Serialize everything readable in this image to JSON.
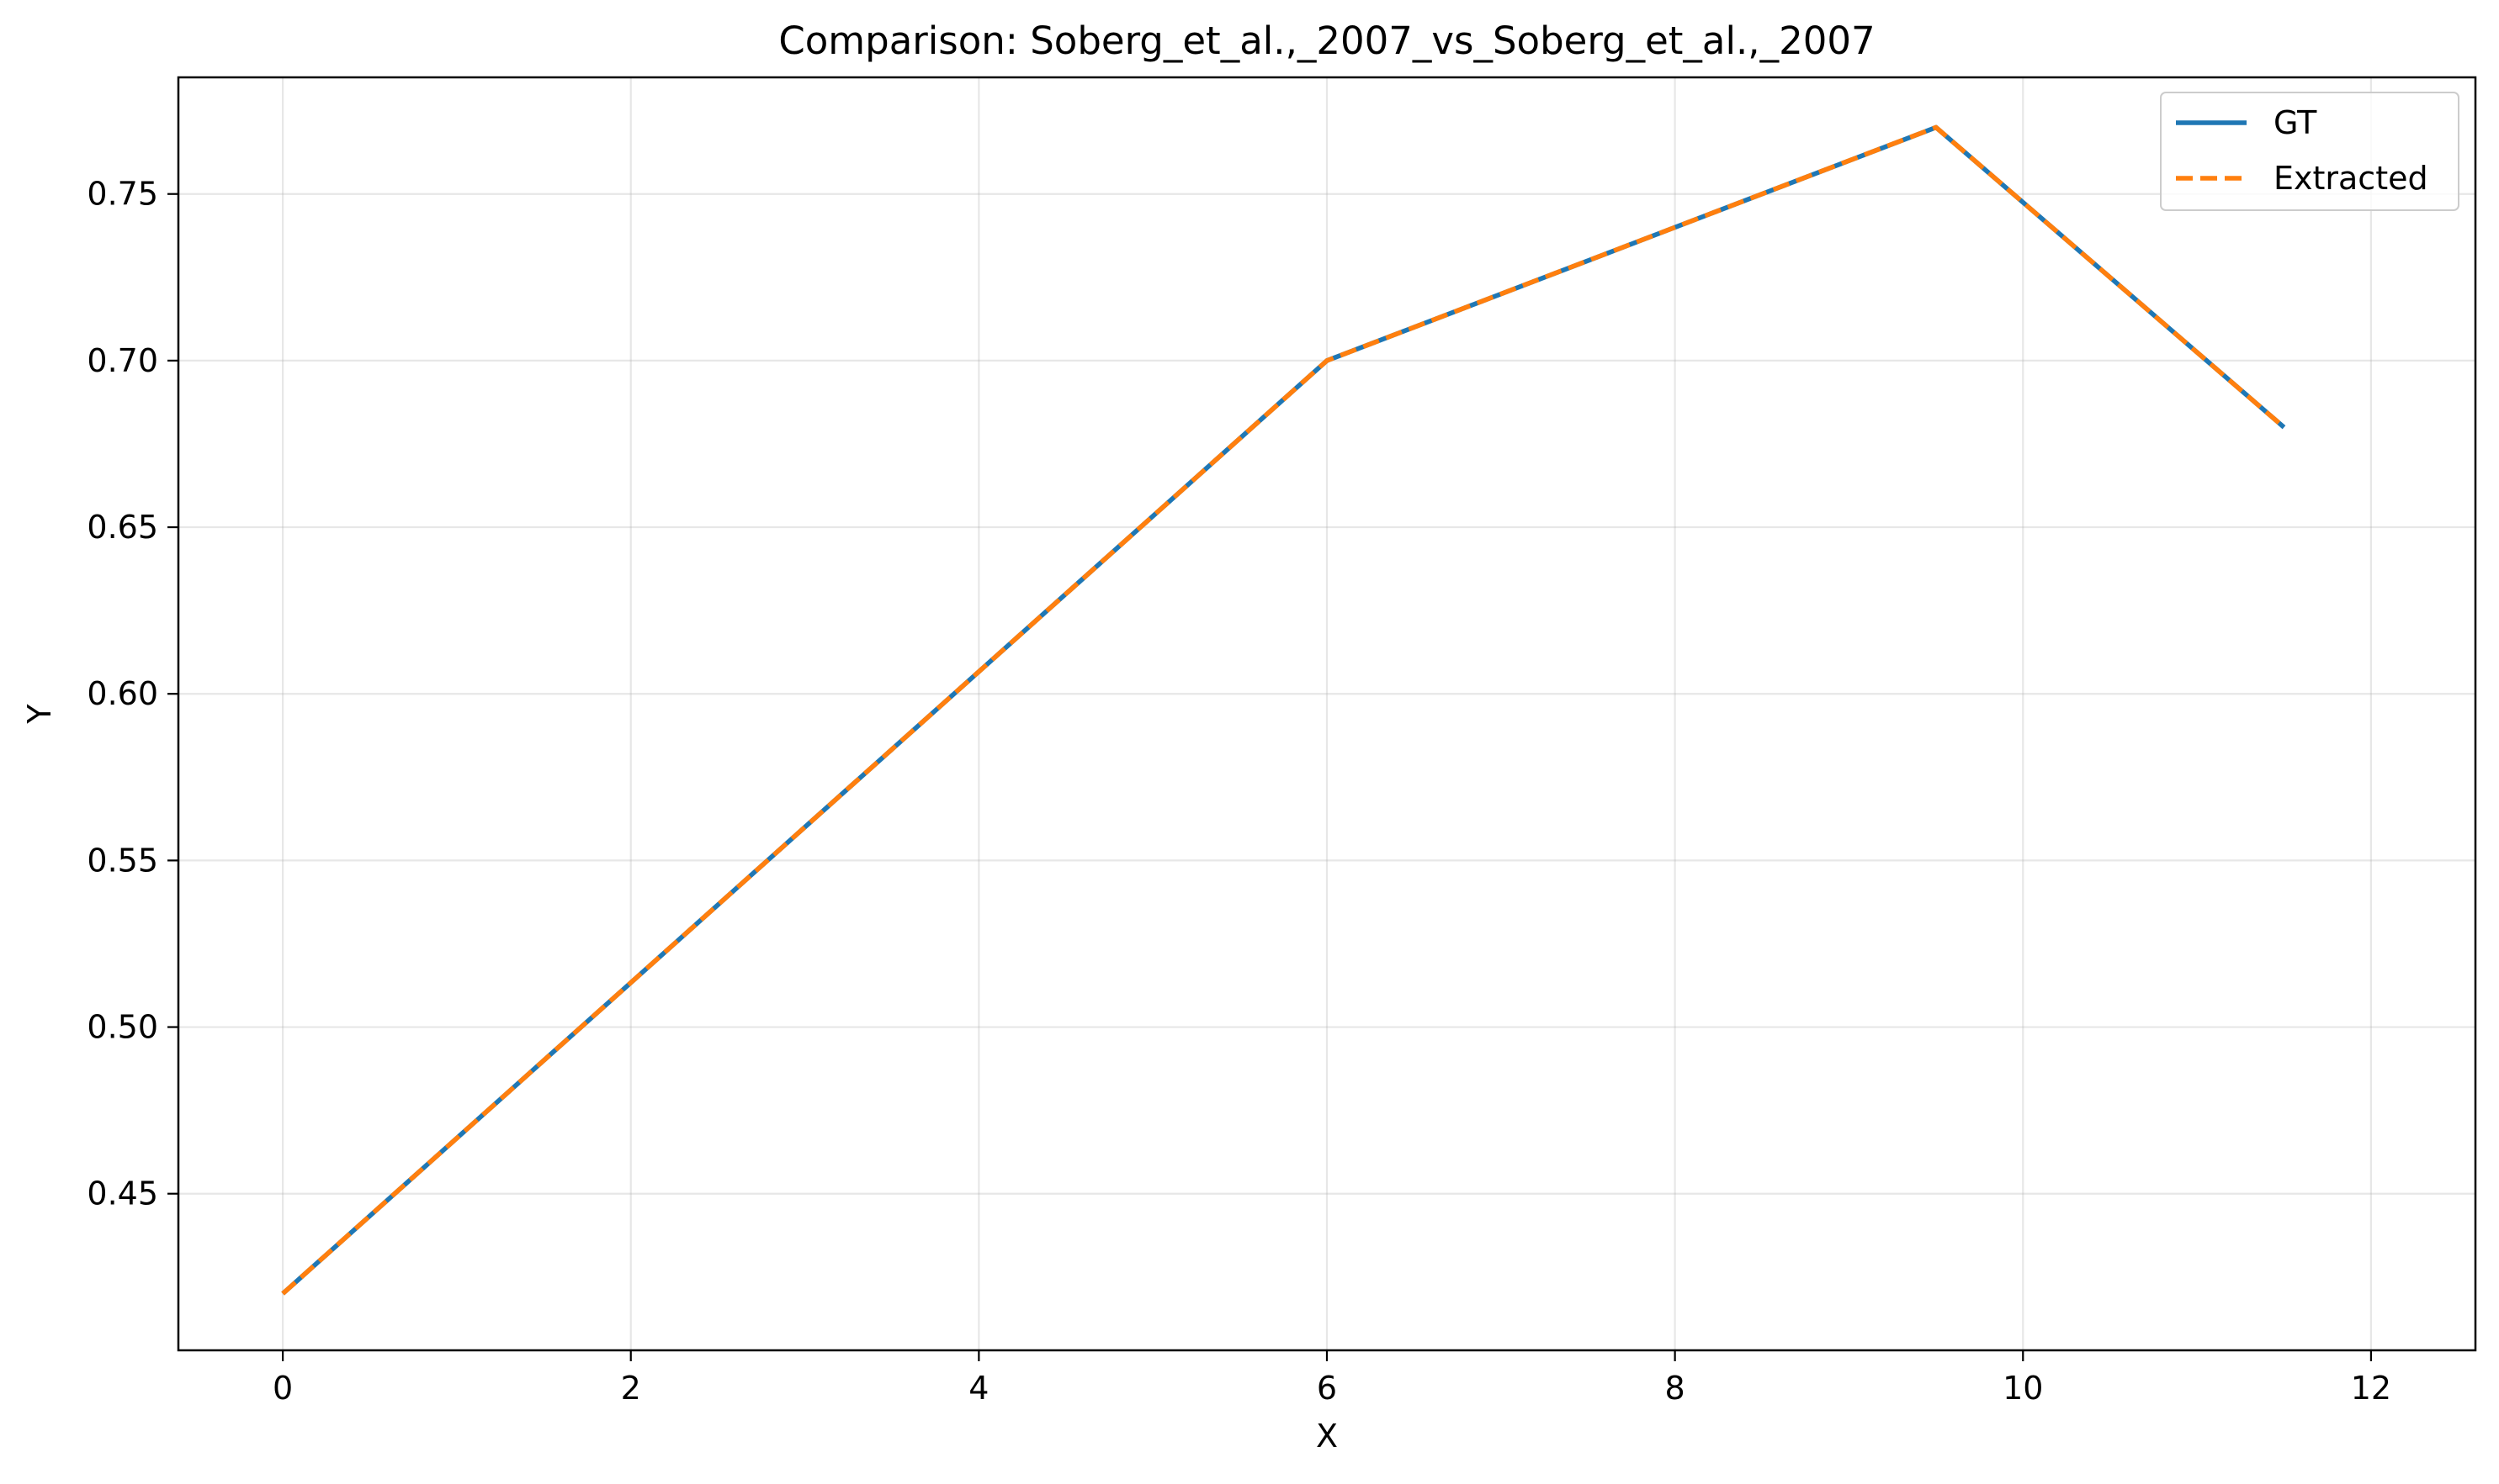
{
  "chart_data": {
    "type": "line",
    "title": "Comparison: Soberg_et_al.,_2007_vs_Soberg_et_al.,_2007",
    "xlabel": "X",
    "ylabel": "Y",
    "xlim": [
      -0.6,
      12.6
    ],
    "ylim": [
      0.403,
      0.785
    ],
    "xticks": [
      0,
      2,
      4,
      6,
      8,
      10,
      12
    ],
    "xtick_labels": [
      "0",
      "2",
      "4",
      "6",
      "8",
      "10",
      "12"
    ],
    "yticks": [
      0.45,
      0.5,
      0.55,
      0.6,
      0.65,
      0.7,
      0.75
    ],
    "ytick_labels": [
      "0.45",
      "0.50",
      "0.55",
      "0.60",
      "0.65",
      "0.70",
      "0.75"
    ],
    "grid": true,
    "legend_position": "top-right",
    "series": [
      {
        "name": "GT",
        "color": "#1f77b4",
        "style": "solid",
        "x": [
          0,
          6,
          9.5,
          11.5
        ],
        "y": [
          0.42,
          0.7,
          0.77,
          0.68
        ]
      },
      {
        "name": "Extracted",
        "color": "#ff7f0e",
        "style": "dashed",
        "x": [
          0,
          6,
          9.5,
          11.5
        ],
        "y": [
          0.42,
          0.7,
          0.77,
          0.68
        ]
      }
    ]
  }
}
